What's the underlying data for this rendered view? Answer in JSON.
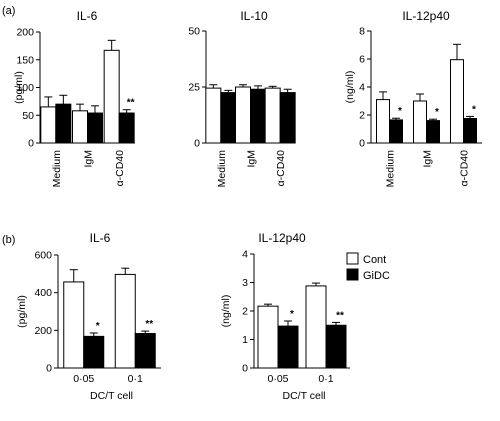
{
  "panel_labels": [
    "(a)",
    "(b)"
  ],
  "colors": {
    "cont": "#ffffff",
    "gidc": "#000000",
    "stroke": "#000000"
  },
  "chart_data": [
    {
      "type": "bar",
      "panel": "a",
      "title": "IL-6",
      "categories": [
        "Medium",
        "IgM",
        "α-CD40"
      ],
      "ylabel": "(pg/ml)",
      "xlabel": "",
      "ylim": [
        0,
        200
      ],
      "yticks": [
        "0",
        "50",
        "100",
        "150",
        "200"
      ],
      "ytick_values": [
        0,
        50,
        100,
        150,
        200
      ],
      "series": [
        {
          "name": "Cont",
          "values": [
            65,
            58,
            167
          ],
          "errors": [
            18,
            12,
            18
          ]
        },
        {
          "name": "GiDC",
          "values": [
            70,
            54,
            54
          ],
          "errors": [
            16,
            13,
            6
          ]
        }
      ],
      "annotations": [
        "",
        "",
        "**"
      ],
      "legend": false
    },
    {
      "type": "bar",
      "panel": "a",
      "title": "IL-10",
      "categories": [
        "Medium",
        "IgM",
        "α-CD40"
      ],
      "ylabel": "",
      "xlabel": "",
      "ylim": [
        0,
        50
      ],
      "yticks": [
        "0",
        "25",
        "50"
      ],
      "ytick_values": [
        0,
        25,
        50
      ],
      "series": [
        {
          "name": "Cont",
          "values": [
            24.5,
            25,
            24.5
          ],
          "errors": [
            1.5,
            1,
            0.8
          ]
        },
        {
          "name": "GiDC",
          "values": [
            22.5,
            24,
            22.5
          ],
          "errors": [
            1,
            1.5,
            1.5
          ]
        }
      ],
      "annotations": [
        "",
        "",
        ""
      ],
      "legend": false
    },
    {
      "type": "bar",
      "panel": "a",
      "title": "IL-12p40",
      "categories": [
        "Medium",
        "IgM",
        "α-CD40"
      ],
      "ylabel": "(ng/ml)",
      "xlabel": "",
      "ylim": [
        0,
        8
      ],
      "yticks": [
        "0",
        "2",
        "4",
        "6",
        "8"
      ],
      "ytick_values": [
        0,
        2,
        4,
        6,
        8
      ],
      "series": [
        {
          "name": "Cont",
          "values": [
            3.1,
            3.0,
            5.95
          ],
          "errors": [
            0.55,
            0.5,
            1.1
          ]
        },
        {
          "name": "GiDC",
          "values": [
            1.65,
            1.6,
            1.75
          ],
          "errors": [
            0.12,
            0.1,
            0.15
          ]
        }
      ],
      "annotations": [
        "*",
        "*",
        "*"
      ],
      "legend": true,
      "legend_entries": [
        "Cont",
        "GiDC"
      ],
      "legend_position": "top-left"
    },
    {
      "type": "bar",
      "panel": "b",
      "title": "IL-6",
      "categories": [
        "0·05",
        "0·1"
      ],
      "ylabel": "(pg/ml)",
      "xlabel": "DC/T cell",
      "ylim": [
        0,
        600
      ],
      "yticks": [
        "0",
        "200",
        "400",
        "600"
      ],
      "ytick_values": [
        0,
        200,
        400,
        600
      ],
      "series": [
        {
          "name": "Cont",
          "values": [
            457,
            497
          ],
          "errors": [
            65,
            33
          ]
        },
        {
          "name": "GiDC",
          "values": [
            168,
            183
          ],
          "errors": [
            18,
            13
          ]
        }
      ],
      "annotations": [
        "*",
        "**"
      ],
      "legend": false
    },
    {
      "type": "bar",
      "panel": "b",
      "title": "IL-12p40",
      "categories": [
        "0·05",
        "0·1"
      ],
      "ylabel": "(ng/ml)",
      "xlabel": "DC/T cell",
      "ylim": [
        0,
        4
      ],
      "yticks": [
        "0",
        "1",
        "2",
        "3",
        "4"
      ],
      "ytick_values": [
        0,
        1,
        2,
        3,
        4
      ],
      "series": [
        {
          "name": "Cont",
          "values": [
            2.17,
            2.88
          ],
          "errors": [
            0.07,
            0.1
          ]
        },
        {
          "name": "GiDC",
          "values": [
            1.47,
            1.5
          ],
          "errors": [
            0.18,
            0.1
          ]
        }
      ],
      "annotations": [
        "*",
        "**"
      ],
      "legend": false
    }
  ],
  "legend_b": {
    "entries": [
      "Cont",
      "GiDC"
    ],
    "position": "right"
  }
}
